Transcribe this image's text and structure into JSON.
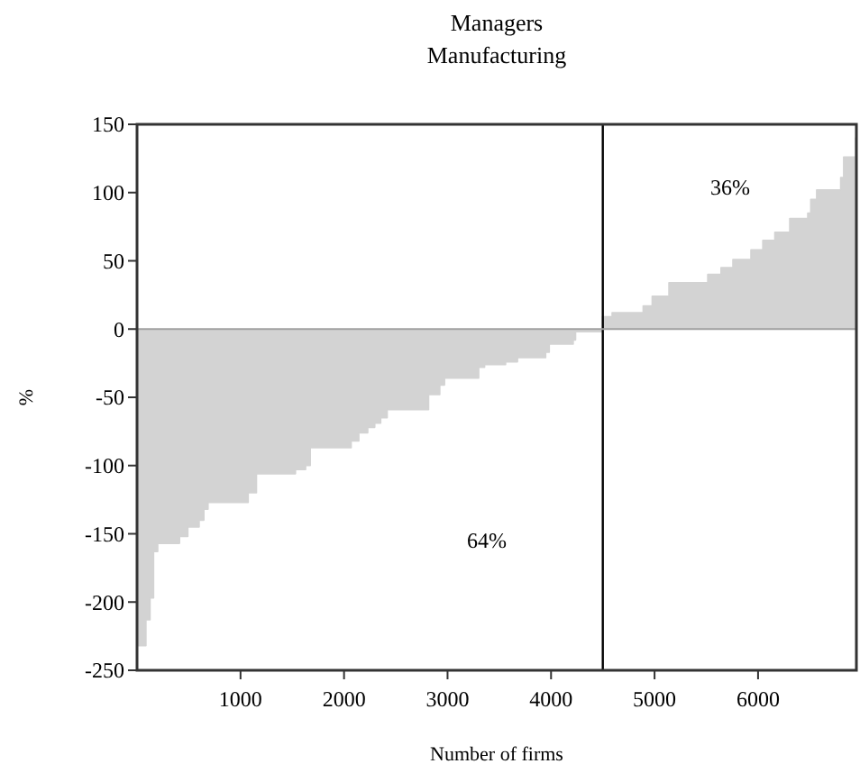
{
  "chart_data": {
    "type": "area",
    "title": "Managers",
    "subtitle": "Manufacturing",
    "xlabel": "Number of firms",
    "ylabel": "%",
    "x": [
      0,
      86,
      126,
      160,
      200,
      411,
      491,
      600,
      646,
      686,
      1074,
      1154,
      1531,
      1629,
      1674,
      2069,
      2143,
      2229,
      2297,
      2354,
      2417,
      2817,
      2925,
      2971,
      3301,
      3358,
      3561,
      3676,
      3948,
      3983,
      4214,
      4237,
      4497,
      4590,
      4890,
      4977,
      5139,
      5514,
      5642,
      5757,
      5931,
      6046,
      6162,
      6306,
      6480,
      6509,
      6566,
      6798,
      6827,
      6942,
      6950
    ],
    "series": [
      {
        "color": "#d3d3d3",
        "values": [
          -232,
          -213,
          -197,
          -163,
          -157,
          -152,
          -145,
          -140,
          -132,
          -127,
          -120,
          -106,
          -103,
          -100,
          -87,
          -82,
          -76,
          -72,
          -69,
          -65,
          -59,
          -48,
          -41,
          -36,
          -28,
          -26,
          -24,
          -21,
          -17,
          -11,
          -8,
          -2,
          9,
          12,
          17,
          24,
          34,
          40,
          45,
          51,
          58,
          65,
          71,
          81,
          85,
          95,
          102,
          111,
          126,
          140,
          140
        ]
      }
    ],
    "xlim": [
      0,
      6950
    ],
    "xticks": [
      1000,
      2000,
      3000,
      4000,
      5000,
      6000
    ],
    "ylim": [
      -250,
      150
    ],
    "yticks": [
      -250,
      -200,
      -150,
      -100,
      -50,
      0,
      50,
      100,
      150
    ],
    "ref_lines": [
      {
        "axis": "x",
        "value": 4500,
        "color": "#000000"
      },
      {
        "axis": "y",
        "value": 0,
        "color": "#a0a0a0"
      }
    ],
    "annotations": [
      "64%",
      "36%"
    ]
  }
}
